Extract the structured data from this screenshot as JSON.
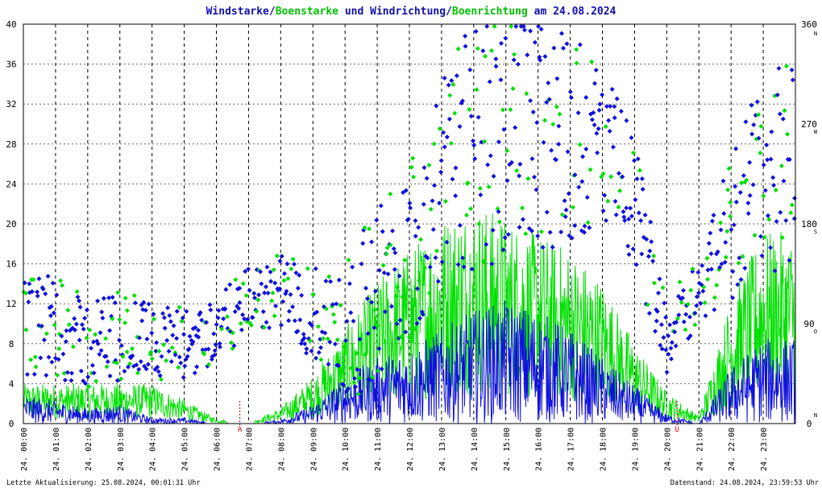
{
  "title": {
    "p1": "Windstarke",
    "sep1": "/",
    "p2": "Boenstarke",
    "p3": " und ",
    "p4": "Windrichtung",
    "sep2": "/",
    "p5": "Boenrichtung",
    "p6": " am 24.08.2024"
  },
  "footer": {
    "left": "Letzte Aktualisierung: 25.08.2024, 00:01:31 Uhr",
    "right": "Datenstand: 24.08.2024, 23:59:53 Uhr"
  },
  "markers": {
    "sunrise": "A",
    "sunset": "U"
  },
  "colors": {
    "wind": "#1010dd",
    "gust": "#00e000",
    "title_dark": "#1010aa",
    "marker": "#cc0000",
    "grid": "#666666"
  },
  "chart_data": {
    "type": "line",
    "x_tick_labels": [
      "24. 00:00",
      "24. 01:00",
      "24. 02:00",
      "24. 03:00",
      "24. 04:00",
      "24. 05:00",
      "24. 06:00",
      "24. 07:00",
      "24. 08:00",
      "24. 09:00",
      "24. 10:00",
      "24. 11:00",
      "24. 12:00",
      "24. 13:00",
      "24. 14:00",
      "24. 15:00",
      "24. 16:00",
      "24. 17:00",
      "24. 18:00",
      "24. 19:00",
      "24. 20:00",
      "24. 21:00",
      "24. 22:00",
      "24. 23:00"
    ],
    "y_left_ticks": [
      "0",
      "4",
      "8",
      "12",
      "16",
      "20",
      "24",
      "28",
      "32",
      "36",
      "40"
    ],
    "y_left_range": [
      0,
      40
    ],
    "y_right_ticks": [
      "0",
      "90",
      "180",
      "270",
      "360"
    ],
    "y_right_range": [
      0,
      360
    ],
    "y_right_direction_labels": [
      "N",
      "O",
      "S",
      "W",
      "N"
    ],
    "grid": true,
    "x_range_hours": [
      0,
      24
    ],
    "sunrise_hour": 6.73,
    "sunset_hour": 20.32,
    "hourly_wind_speed": [
      1.5,
      1.2,
      0.8,
      1.0,
      0.3,
      0.3,
      0,
      0,
      0.2,
      1.0,
      2.5,
      3.5,
      4.0,
      5.0,
      6.0,
      6.5,
      6.0,
      5.0,
      3.5,
      2.0,
      0.5,
      0,
      3.0,
      4.5
    ],
    "hourly_gust_speed": [
      2.5,
      2.5,
      2.5,
      2.5,
      2.5,
      1.5,
      0.3,
      0,
      1.0,
      3.0,
      6.0,
      9.0,
      11.0,
      13.0,
      14.0,
      13.0,
      12.0,
      11.0,
      9.0,
      5.0,
      2.0,
      0.5,
      8.0,
      12.0
    ],
    "hourly_wind_direction_deg": [
      80,
      90,
      70,
      80,
      75,
      70,
      85,
      110,
      120,
      100,
      80,
      120,
      160,
      220,
      250,
      270,
      270,
      260,
      250,
      200,
      80,
      120,
      180,
      230
    ],
    "series": [
      {
        "name": "Windstarke",
        "quantity": "speed"
      },
      {
        "name": "Boenstarke",
        "quantity": "speed"
      },
      {
        "name": "Windrichtung",
        "quantity": "direction"
      },
      {
        "name": "Boenrichtung",
        "quantity": "direction"
      }
    ]
  }
}
